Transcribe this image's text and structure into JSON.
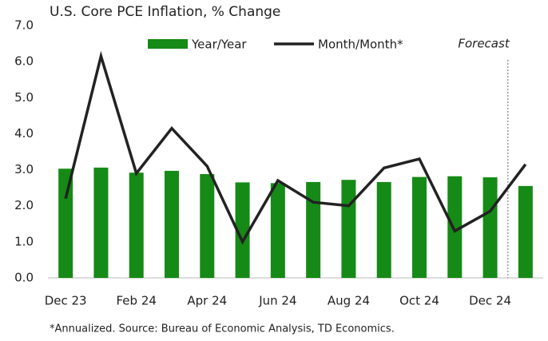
{
  "chart_data": {
    "type": "bar_line",
    "title": "U.S. Core PCE Inflation, % Change",
    "footnote": "*Annualized. Source: Bureau of Economic Analysis, TD Economics.",
    "forecast_label": "Forecast",
    "categories": [
      "Dec 23",
      null,
      "Feb 24",
      null,
      "Apr 24",
      null,
      "Jun 24",
      null,
      "Aug 24",
      null,
      "Oct 24",
      null,
      "Dec 24",
      null
    ],
    "series": [
      {
        "name": "Year/Year",
        "color": "#168a16",
        "type": "bar",
        "values": [
          3.03,
          3.06,
          2.92,
          2.97,
          2.88,
          2.65,
          2.63,
          2.66,
          2.72,
          2.66,
          2.8,
          2.82,
          2.79,
          2.55
        ]
      },
      {
        "name": "Month/Month*",
        "color": "#222222",
        "type": "line",
        "values": [
          2.2,
          6.15,
          2.9,
          4.15,
          3.1,
          1.0,
          2.7,
          2.1,
          2.0,
          3.05,
          3.3,
          1.3,
          1.85,
          3.15
        ]
      }
    ],
    "ylim": [
      0,
      7
    ],
    "yticks": [
      {
        "value": 0,
        "label": "0.0"
      },
      {
        "value": 1,
        "label": "1.0"
      },
      {
        "value": 2,
        "label": "2.0"
      },
      {
        "value": 3,
        "label": "3.0"
      },
      {
        "value": 4,
        "label": "4.0"
      },
      {
        "value": 5,
        "label": "5.0"
      },
      {
        "value": 6,
        "label": "6.0"
      },
      {
        "value": 7,
        "label": "7.0"
      }
    ],
    "grid": false
  }
}
